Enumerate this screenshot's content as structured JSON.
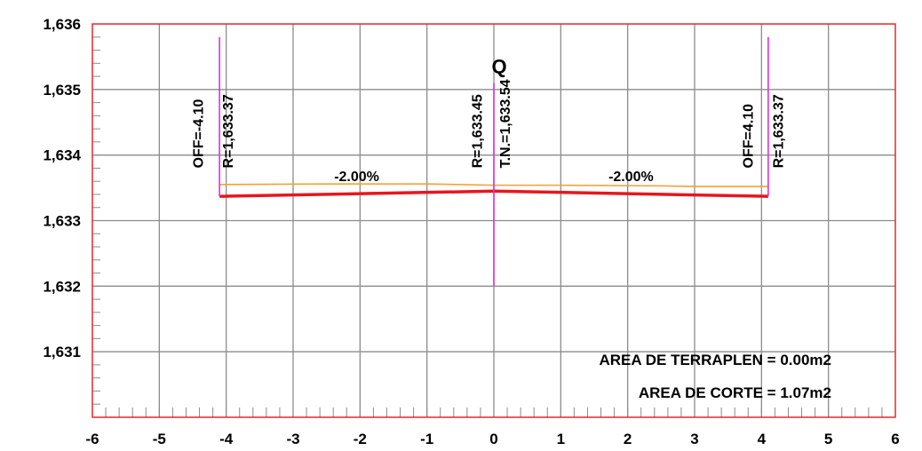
{
  "chart_data": {
    "type": "line",
    "title": "",
    "xlabel": "",
    "ylabel": "",
    "xlim": [
      -6,
      6
    ],
    "ylim": [
      1630.0,
      1636.0
    ],
    "grid": true,
    "x_ticks": [
      -6,
      -5,
      -4,
      -3,
      -2,
      -1,
      0,
      1,
      2,
      3,
      4,
      5,
      6
    ],
    "x_tick_labels": [
      "-6",
      "-5",
      "-4",
      "-3",
      "-2",
      "-1",
      "0",
      "1",
      "2",
      "3",
      "4",
      "5",
      "6"
    ],
    "y_ticks": [
      1631,
      1632,
      1633,
      1634,
      1635,
      1636
    ],
    "y_tick_labels": [
      "1,631",
      "1,632",
      "1,633",
      "1,634",
      "1,635",
      "1,636"
    ],
    "colors": {
      "frame": "#e8262d",
      "grid": "#8c8c8c",
      "rasante": "#e8161e",
      "terrain": "#f5a033",
      "markers": "#e030e0"
    },
    "series": [
      {
        "key": "rasante",
        "x": [
          -4.1,
          0,
          4.1
        ],
        "y": [
          1633.37,
          1633.45,
          1633.37
        ]
      },
      {
        "key": "terrain",
        "x": [
          -4.1,
          -2.5,
          -1.0,
          0,
          1.0,
          2.5,
          3.0,
          4.1
        ],
        "y": [
          1633.55,
          1633.56,
          1633.56,
          1633.54,
          1633.54,
          1633.53,
          1633.52,
          1633.52
        ]
      }
    ],
    "vertical_markers": [
      {
        "x": -4.1,
        "y_top": 1635.8,
        "y_bottom": 1633.37
      },
      {
        "x": 0,
        "y_top": 1635.1,
        "y_bottom": 1632.0
      },
      {
        "x": 4.1,
        "y_top": 1635.8,
        "y_bottom": 1633.37
      }
    ],
    "annotations": {
      "left_offset": {
        "text": "OFF=-4.10",
        "x": -4.35,
        "y": 1633.8
      },
      "left_elev": {
        "text": "R=1,633.37",
        "x": -3.9,
        "y": 1633.8
      },
      "center_elev": {
        "text": "R=1,633.45",
        "x": -0.18,
        "y": 1633.8
      },
      "center_tn": {
        "text": "T.N.=1,633.54",
        "x": 0.24,
        "y": 1633.8
      },
      "right_offset": {
        "text": "OFF=4.10",
        "x": 3.87,
        "y": 1633.8
      },
      "right_elev": {
        "text": "R=1,633.37",
        "x": 4.32,
        "y": 1633.8
      },
      "slope_left": {
        "text": "-2.00%",
        "x": -2.05,
        "y": 1633.6
      },
      "slope_right": {
        "text": "-2.00%",
        "x": 2.05,
        "y": 1633.6
      },
      "axis_symbol": {
        "text": "Q",
        "x": 0.08,
        "y": 1635.25
      }
    },
    "area_labels": {
      "terraplen": "AREA DE TERRAPLEN = 0.00m2",
      "corte": "AREA DE CORTE = 1.07m2"
    }
  }
}
